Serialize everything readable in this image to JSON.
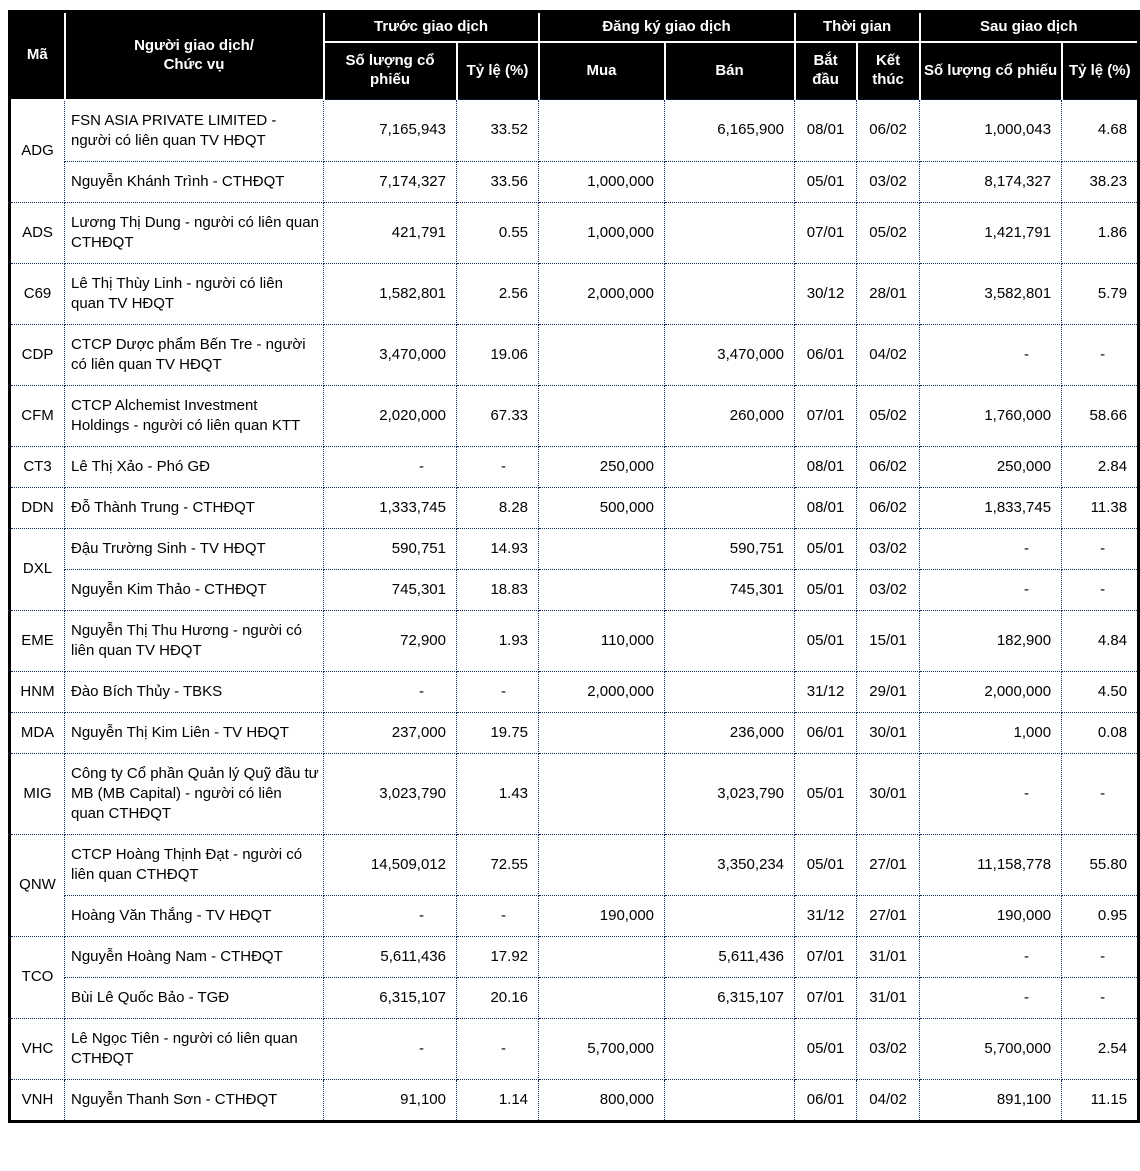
{
  "header": {
    "ma": "Mã",
    "trader": "Người giao dịch/\nChức vụ",
    "before_group": "Trước giao dịch",
    "register_group": "Đăng ký giao dịch",
    "time_group": "Thời gian",
    "after_group": "Sau giao dịch",
    "shares_before": "Số lượng cổ phiếu",
    "ratio_before": "Tỷ lệ (%)",
    "buy": "Mua",
    "sell": "Bán",
    "start": "Bắt đầu",
    "end": "Kết thúc",
    "shares_after": "Số lượng cổ phiếu",
    "ratio_after": "Tỷ lệ (%)"
  },
  "colors": {
    "header_bg": "#000000",
    "header_text": "#ffffff",
    "grid_dotted": "#0e2a5e",
    "outer_border": "#000000"
  },
  "groups": [
    {
      "code": "ADG",
      "rows": [
        {
          "name": "FSN ASIA PRIVATE LIMITED - người có liên quan TV HĐQT",
          "before_shares": "7,165,943",
          "before_pct": "33.52",
          "buy": "",
          "sell": "6,165,900",
          "start": "08/01",
          "end": "06/02",
          "after_shares": "1,000,043",
          "after_pct": "4.68"
        },
        {
          "name": "Nguyễn Khánh Trình - CTHĐQT",
          "before_shares": "7,174,327",
          "before_pct": "33.56",
          "buy": "1,000,000",
          "sell": "",
          "start": "05/01",
          "end": "03/02",
          "after_shares": "8,174,327",
          "after_pct": "38.23"
        }
      ]
    },
    {
      "code": "ADS",
      "rows": [
        {
          "name": "Lương Thị Dung - người có liên quan CTHĐQT",
          "before_shares": "421,791",
          "before_pct": "0.55",
          "buy": "1,000,000",
          "sell": "",
          "start": "07/01",
          "end": "05/02",
          "after_shares": "1,421,791",
          "after_pct": "1.86"
        }
      ]
    },
    {
      "code": "C69",
      "rows": [
        {
          "name": "Lê Thị Thùy Linh - người có liên quan TV HĐQT",
          "before_shares": "1,582,801",
          "before_pct": "2.56",
          "buy": "2,000,000",
          "sell": "",
          "start": "30/12",
          "end": "28/01",
          "after_shares": "3,582,801",
          "after_pct": "5.79"
        }
      ]
    },
    {
      "code": "CDP",
      "rows": [
        {
          "name": "CTCP Dược phẩm Bến Tre - người có liên quan TV HĐQT",
          "before_shares": "3,470,000",
          "before_pct": "19.06",
          "buy": "",
          "sell": "3,470,000",
          "start": "06/01",
          "end": "04/02",
          "after_shares": "-",
          "after_pct": "-"
        }
      ]
    },
    {
      "code": "CFM",
      "rows": [
        {
          "name": "CTCP Alchemist Investment Holdings - người có liên quan KTT",
          "before_shares": "2,020,000",
          "before_pct": "67.33",
          "buy": "",
          "sell": "260,000",
          "start": "07/01",
          "end": "05/02",
          "after_shares": "1,760,000",
          "after_pct": "58.66"
        }
      ]
    },
    {
      "code": "CT3",
      "rows": [
        {
          "name": "Lê Thị Xảo - Phó GĐ",
          "before_shares": "-",
          "before_pct": "-",
          "buy": "250,000",
          "sell": "",
          "start": "08/01",
          "end": "06/02",
          "after_shares": "250,000",
          "after_pct": "2.84"
        }
      ]
    },
    {
      "code": "DDN",
      "rows": [
        {
          "name": "Đỗ Thành Trung - CTHĐQT",
          "before_shares": "1,333,745",
          "before_pct": "8.28",
          "buy": "500,000",
          "sell": "",
          "start": "08/01",
          "end": "06/02",
          "after_shares": "1,833,745",
          "after_pct": "11.38"
        }
      ]
    },
    {
      "code": "DXL",
      "rows": [
        {
          "name": "Đậu Trường Sinh - TV HĐQT",
          "before_shares": "590,751",
          "before_pct": "14.93",
          "buy": "",
          "sell": "590,751",
          "start": "05/01",
          "end": "03/02",
          "after_shares": "-",
          "after_pct": "-"
        },
        {
          "name": "Nguyễn Kim Thảo - CTHĐQT",
          "before_shares": "745,301",
          "before_pct": "18.83",
          "buy": "",
          "sell": "745,301",
          "start": "05/01",
          "end": "03/02",
          "after_shares": "-",
          "after_pct": "-"
        }
      ]
    },
    {
      "code": "EME",
      "rows": [
        {
          "name": "Nguyễn Thị Thu Hương - người có liên quan TV HĐQT",
          "before_shares": "72,900",
          "before_pct": "1.93",
          "buy": "110,000",
          "sell": "",
          "start": "05/01",
          "end": "15/01",
          "after_shares": "182,900",
          "after_pct": "4.84"
        }
      ]
    },
    {
      "code": "HNM",
      "rows": [
        {
          "name": "Đào Bích Thủy - TBKS",
          "before_shares": "-",
          "before_pct": "-",
          "buy": "2,000,000",
          "sell": "",
          "start": "31/12",
          "end": "29/01",
          "after_shares": "2,000,000",
          "after_pct": "4.50"
        }
      ]
    },
    {
      "code": "MDA",
      "rows": [
        {
          "name": "Nguyễn Thị Kim Liên - TV HĐQT",
          "before_shares": "237,000",
          "before_pct": "19.75",
          "buy": "",
          "sell": "236,000",
          "start": "06/01",
          "end": "30/01",
          "after_shares": "1,000",
          "after_pct": "0.08"
        }
      ]
    },
    {
      "code": "MIG",
      "rows": [
        {
          "name": "Công ty Cổ phần Quản lý Quỹ đầu tư MB (MB Capital) - người có liên quan CTHĐQT",
          "before_shares": "3,023,790",
          "before_pct": "1.43",
          "buy": "",
          "sell": "3,023,790",
          "start": "05/01",
          "end": "30/01",
          "after_shares": "-",
          "after_pct": "-"
        }
      ]
    },
    {
      "code": "QNW",
      "rows": [
        {
          "name": "CTCP Hoàng Thịnh Đạt - người có liên quan CTHĐQT",
          "before_shares": "14,509,012",
          "before_pct": "72.55",
          "buy": "",
          "sell": "3,350,234",
          "start": "05/01",
          "end": "27/01",
          "after_shares": "11,158,778",
          "after_pct": "55.80"
        },
        {
          "name": "Hoàng Văn Thắng - TV HĐQT",
          "before_shares": "-",
          "before_pct": "-",
          "buy": "190,000",
          "sell": "",
          "start": "31/12",
          "end": "27/01",
          "after_shares": "190,000",
          "after_pct": "0.95"
        }
      ]
    },
    {
      "code": "TCO",
      "rows": [
        {
          "name": "Nguyễn Hoàng Nam - CTHĐQT",
          "before_shares": "5,611,436",
          "before_pct": "17.92",
          "buy": "",
          "sell": "5,611,436",
          "start": "07/01",
          "end": "31/01",
          "after_shares": "-",
          "after_pct": "-"
        },
        {
          "name": "Bùi Lê Quốc Bảo - TGĐ",
          "before_shares": "6,315,107",
          "before_pct": "20.16",
          "buy": "",
          "sell": "6,315,107",
          "start": "07/01",
          "end": "31/01",
          "after_shares": "-",
          "after_pct": "-"
        }
      ]
    },
    {
      "code": "VHC",
      "rows": [
        {
          "name": "Lê Ngọc Tiên - người có liên quan CTHĐQT",
          "before_shares": "-",
          "before_pct": "-",
          "buy": "5,700,000",
          "sell": "",
          "start": "05/01",
          "end": "03/02",
          "after_shares": "5,700,000",
          "after_pct": "2.54"
        }
      ]
    },
    {
      "code": "VNH",
      "rows": [
        {
          "name": "Nguyễn Thanh Sơn - CTHĐQT",
          "before_shares": "91,100",
          "before_pct": "1.14",
          "buy": "800,000",
          "sell": "",
          "start": "06/01",
          "end": "04/02",
          "after_shares": "891,100",
          "after_pct": "11.15"
        }
      ]
    }
  ]
}
